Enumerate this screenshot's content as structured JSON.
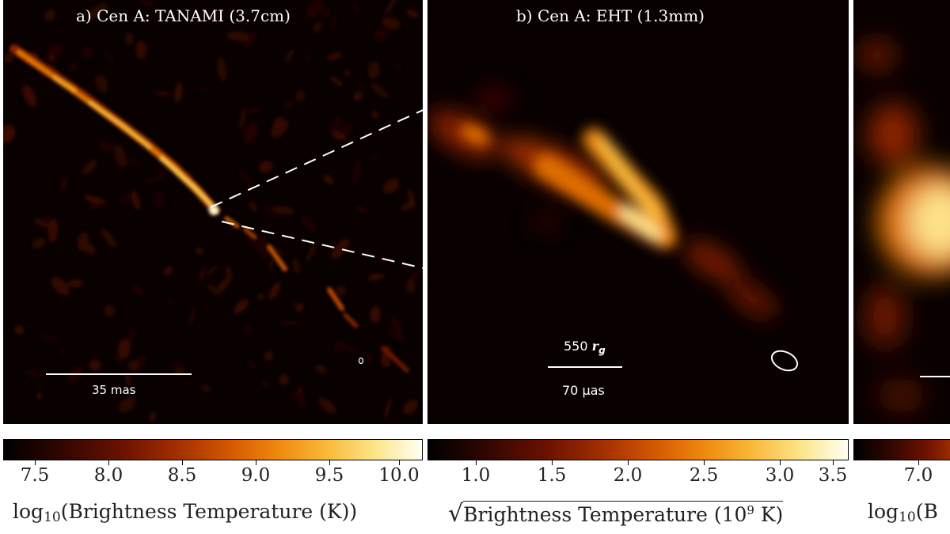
{
  "panels": {
    "a": {
      "title": "a) Cen A: TANAMI (3.7cm)",
      "scale_label": "35 mas"
    },
    "b": {
      "title": "b) Cen A: EHT (1.3mm)",
      "scale_top_label": "550",
      "scale_top_symbol": "r",
      "scale_top_subscript": "g",
      "scale_bottom_label": "70 μas"
    }
  },
  "colorbars": {
    "a": {
      "ticks": [
        "7.5",
        "8.0",
        "8.5",
        "9.0",
        "9.5",
        "10.0"
      ],
      "label_prefix": "log",
      "label_sub": "10",
      "label_main": "(Brightness Temperature (K))"
    },
    "b": {
      "ticks": [
        "1.0",
        "1.5",
        "2.0",
        "2.5",
        "3.0",
        "3.5"
      ],
      "label_sqrt": "√",
      "label_main": "Brightness Temperature (10",
      "label_sup": "9",
      "label_end": " K)"
    },
    "c": {
      "ticks": [
        "7.0"
      ],
      "label_prefix": "log",
      "label_sub": "10",
      "label_main": "(B"
    }
  },
  "colors": {
    "panel_bg": "#080100",
    "cmap_low": "#2a0500",
    "cmap_mid": "#d65c00",
    "cmap_high": "#fffff4"
  }
}
